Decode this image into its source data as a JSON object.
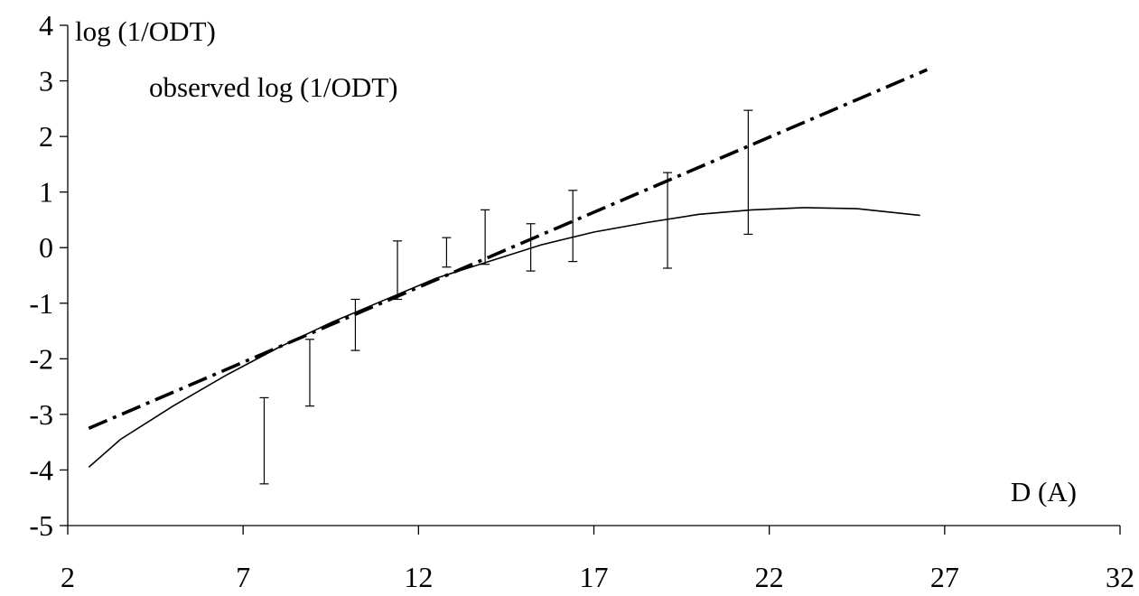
{
  "chart_data": {
    "type": "line",
    "title": "",
    "xlabel": "D (A)",
    "ylabel": "log (1/ODT)",
    "annotation": "observed log (1/ODT)",
    "xlim": [
      2,
      32
    ],
    "ylim": [
      -5,
      4
    ],
    "x_ticks": [
      2,
      7,
      12,
      17,
      22,
      27,
      32
    ],
    "y_ticks": [
      4,
      3,
      2,
      1,
      0,
      -1,
      -2,
      -3,
      -4,
      -5
    ],
    "grid": false,
    "series": [
      {
        "style": "solid",
        "x": [
          2.6,
          3.5,
          5,
          6.5,
          8,
          9.5,
          11,
          12.5,
          14,
          15.5,
          17,
          18.5,
          20,
          21.5,
          23,
          24.5,
          26.3
        ],
        "y": [
          -3.95,
          -3.45,
          -2.85,
          -2.3,
          -1.8,
          -1.35,
          -0.95,
          -0.55,
          -0.25,
          0.05,
          0.28,
          0.45,
          0.6,
          0.68,
          0.72,
          0.7,
          0.58
        ]
      },
      {
        "style": "dash-dot",
        "x": [
          2.6,
          26.5
        ],
        "y": [
          -3.25,
          3.2
        ]
      }
    ],
    "error_bars": [
      {
        "x": 7.6,
        "low": -4.25,
        "high": -2.7
      },
      {
        "x": 8.9,
        "low": -2.85,
        "high": -1.65
      },
      {
        "x": 10.2,
        "low": -1.85,
        "high": -0.93
      },
      {
        "x": 11.4,
        "low": -0.93,
        "high": 0.12
      },
      {
        "x": 12.8,
        "low": -0.35,
        "high": 0.18
      },
      {
        "x": 13.9,
        "low": -0.3,
        "high": 0.68
      },
      {
        "x": 15.2,
        "low": -0.42,
        "high": 0.43
      },
      {
        "x": 16.4,
        "low": -0.25,
        "high": 1.03
      },
      {
        "x": 19.1,
        "low": -0.37,
        "high": 1.35
      },
      {
        "x": 21.4,
        "low": 0.24,
        "high": 2.47
      }
    ]
  }
}
